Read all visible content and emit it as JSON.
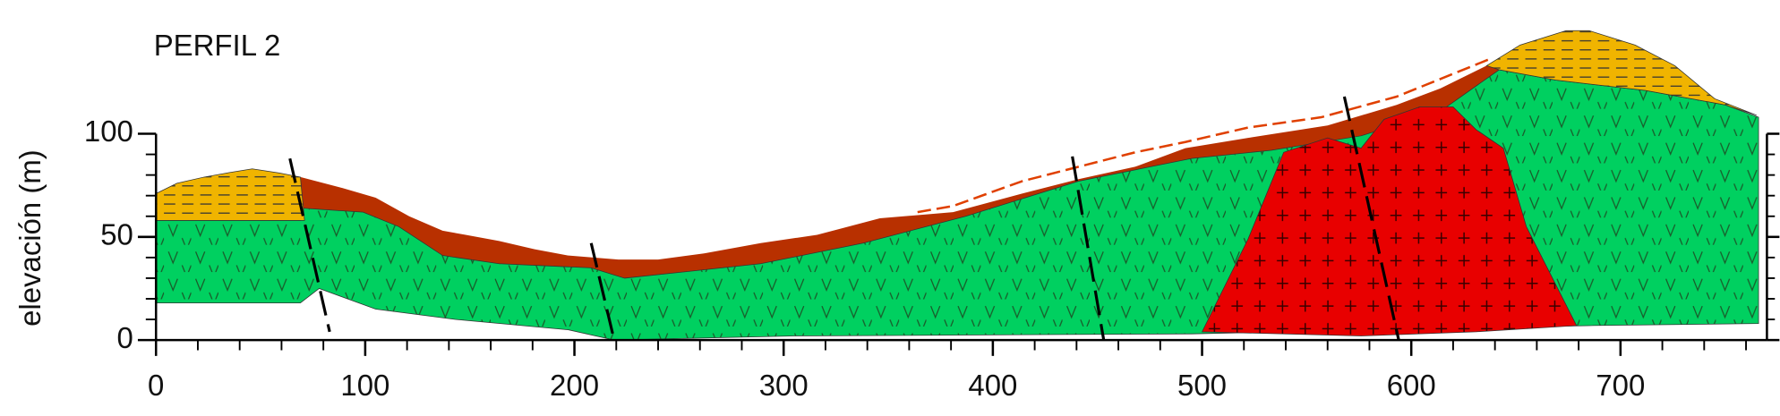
{
  "chart_data": {
    "type": "cross-section",
    "title": "PERFIL 2",
    "y_label": "elevación (m)",
    "xlim": [
      0,
      770
    ],
    "ylim": [
      0,
      100
    ],
    "xticks": [
      0,
      100,
      200,
      300,
      400,
      500,
      600,
      700
    ],
    "yticks": [
      0,
      50,
      100
    ],
    "x_minor_ticks": [
      20,
      40,
      60,
      80,
      120,
      140,
      160,
      180,
      220,
      240,
      260,
      280,
      320,
      340,
      360,
      380,
      420,
      440,
      460,
      480,
      520,
      540,
      560,
      580,
      620,
      640,
      660,
      680,
      720,
      740,
      760
    ],
    "y_minor_ticks": [
      10,
      20,
      30,
      40,
      60,
      70,
      80,
      90
    ],
    "layers": [
      {
        "color": "#b83000",
        "pattern": "none",
        "x": [
          0,
          10,
          23,
          34,
          46,
          59,
          69,
          88,
          105,
          121,
          137,
          148,
          164,
          181,
          197,
          221,
          240,
          262,
          289,
          316,
          346,
          381,
          414,
          441,
          468,
          492,
          522,
          560,
          593,
          614,
          636,
          642,
          614,
          576,
          533,
          495,
          441,
          387,
          338,
          289,
          224,
          208,
          164,
          137,
          116,
          99,
          69,
          0
        ],
        "y": [
          71,
          76,
          79,
          81,
          83,
          81,
          79,
          74,
          69,
          60,
          53,
          51,
          48,
          44,
          41,
          39,
          39,
          42,
          47,
          51,
          59,
          62,
          71,
          78,
          84,
          93,
          98,
          104,
          114,
          122,
          133,
          131,
          111,
          99,
          92,
          88,
          77,
          60,
          47,
          37,
          30,
          35,
          37,
          41,
          55,
          62,
          64,
          58
        ]
      },
      {
        "color": "#00d060",
        "pattern": "v",
        "x": [
          0,
          69,
          69,
          99,
          116,
          137,
          164,
          208,
          224,
          289,
          338,
          387,
          441,
          495,
          533,
          576,
          614,
          642,
          669,
          712,
          750,
          766,
          766,
          685,
          495,
          305,
          219,
          197,
          143,
          105,
          78,
          69,
          0
        ],
        "y": [
          58,
          58,
          64,
          62,
          55,
          41,
          37,
          35,
          30,
          37,
          47,
          60,
          77,
          88,
          92,
          99,
          111,
          131,
          126,
          121,
          114,
          108,
          8,
          7,
          3,
          2,
          0,
          5,
          10,
          15,
          25,
          18,
          18
        ]
      },
      {
        "color": "#f0b400",
        "pattern": "dash",
        "x": [
          0,
          10,
          23,
          34,
          46,
          59,
          69,
          71,
          0
        ],
        "y": [
          71,
          76,
          79,
          81,
          83,
          81,
          79,
          58,
          58
        ]
      },
      {
        "color": "#f0b400",
        "pattern": "dash",
        "x": [
          636,
          652,
          674,
          685,
          707,
          726,
          745,
          765,
          750,
          712,
          669,
          642
        ],
        "y": [
          133,
          143,
          150,
          150,
          143,
          133,
          117,
          109,
          114,
          121,
          126,
          131
        ]
      },
      {
        "color": "#e80000",
        "pattern": "plus",
        "x": [
          500,
          522,
          539,
          560,
          576,
          587,
          604,
          620,
          631,
          644,
          655,
          679,
          631,
          576
        ],
        "y": [
          4,
          49,
          91,
          98,
          93,
          107,
          113,
          113,
          102,
          93,
          55,
          7,
          4,
          2
        ]
      }
    ],
    "faults": [
      {
        "x": [
          64,
          83
        ],
        "y": [
          88,
          4
        ]
      },
      {
        "x": [
          208,
          219
        ],
        "y": [
          47,
          0
        ]
      },
      {
        "x": [
          438,
          453
        ],
        "y": [
          89,
          0
        ]
      },
      {
        "x": [
          568,
          594
        ],
        "y": [
          118,
          0
        ]
      }
    ],
    "dashed_line": {
      "color": "#e04000",
      "x": [
        364,
        381,
        414,
        441,
        468,
        492,
        522,
        557,
        593,
        637
      ],
      "y": [
        62,
        65,
        77,
        84,
        91,
        96,
        103,
        108,
        118,
        136
      ]
    }
  }
}
